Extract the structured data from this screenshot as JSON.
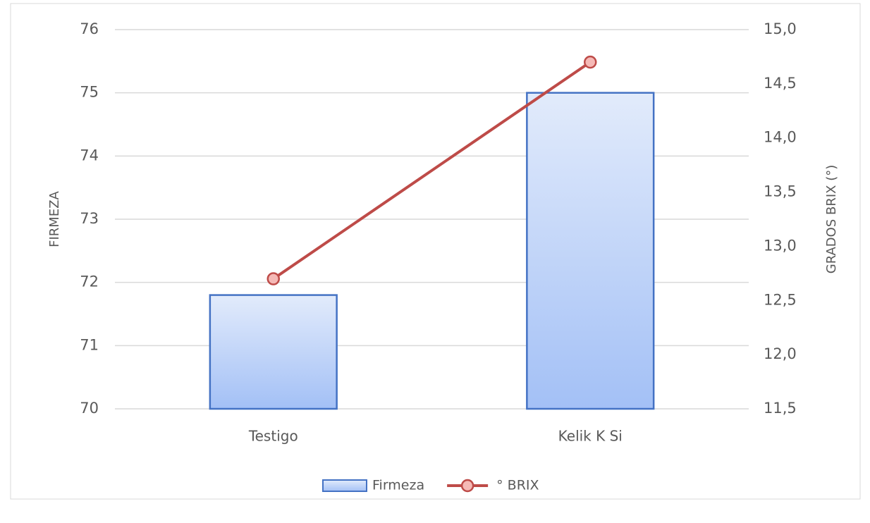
{
  "chart_data": {
    "type": "bar",
    "categories": [
      "Testigo",
      "Kelik K Si"
    ],
    "series": [
      {
        "name": "Firmeza",
        "color": "#4472c4",
        "type": "bar",
        "values": [
          71.8,
          75
        ]
      },
      {
        "name": "° BRIX",
        "color": "#be4b48",
        "type": "line",
        "axis": "y2",
        "values": [
          12.7,
          14.7
        ]
      }
    ],
    "ylabel": "FIRMEZA",
    "y2label": "GRADOS BRIX (°)",
    "ylim": [
      70,
      76
    ],
    "yticks": [
      70,
      71,
      72,
      73,
      74,
      75,
      76
    ],
    "y2lim": [
      11.5,
      15
    ],
    "y2ticks": [
      {
        "value": 11.5,
        "label": "11,5"
      },
      {
        "value": 12,
        "label": "12,0"
      },
      {
        "value": 12.5,
        "label": "12,5"
      },
      {
        "value": 13,
        "label": "13,0"
      },
      {
        "value": 13.5,
        "label": "13,5"
      },
      {
        "value": 14,
        "label": "14,0"
      },
      {
        "value": 14.5,
        "label": "14,5"
      },
      {
        "value": 15,
        "label": "15,0"
      }
    ],
    "grid": true,
    "legend": "bottom"
  }
}
